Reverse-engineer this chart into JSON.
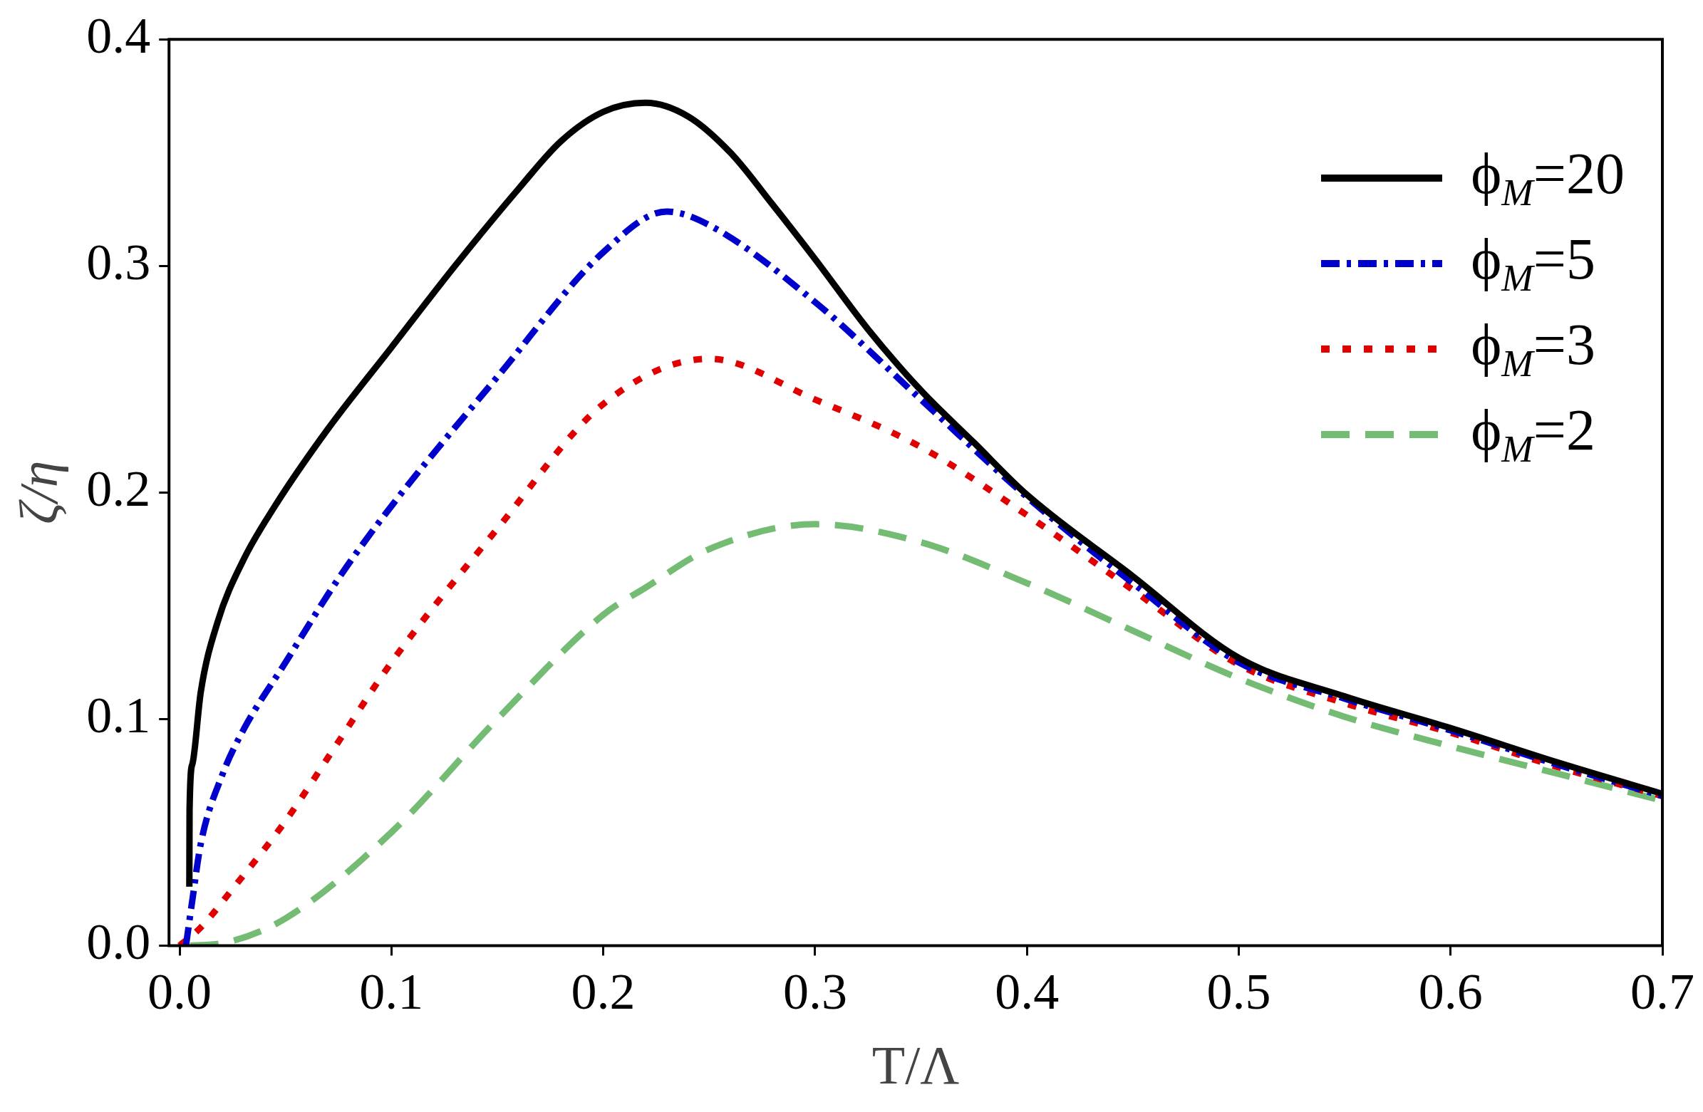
{
  "chart_data": {
    "type": "line",
    "xlabel": "T/Λ",
    "ylabel": "ζ/η",
    "xlim": [
      -0.005,
      0.7
    ],
    "ylim": [
      0,
      0.4
    ],
    "xticks": [
      {
        "value": 0,
        "label": "0.0"
      },
      0.1,
      0.2,
      0.3,
      0.4,
      0.5,
      0.6,
      0.7
    ],
    "yticks": [
      {
        "value": 0,
        "label": "0.0"
      },
      0.1,
      0.2,
      0.3,
      0.4
    ],
    "grid": false,
    "legend": "top right",
    "marker": "none",
    "series": [
      {
        "name": "ϕ$_{M}$=20",
        "color": "#000000",
        "line_style": "solid",
        "x": [
          0.0046,
          0.0047,
          0.006,
          0.01,
          0.018,
          0.03,
          0.045,
          0.07,
          0.1,
          0.13,
          0.16,
          0.18,
          0.2,
          0.22,
          0.24,
          0.26,
          0.28,
          0.3,
          0.325,
          0.35,
          0.375,
          0.4,
          0.45,
          0.5,
          0.55,
          0.6,
          0.65,
          0.7
        ],
        "values": [
          0.026,
          0.06,
          0.08,
          0.112,
          0.143,
          0.17,
          0.194,
          0.228,
          0.264,
          0.3,
          0.334,
          0.355,
          0.368,
          0.372,
          0.366,
          0.35,
          0.327,
          0.303,
          0.272,
          0.245,
          0.222,
          0.199,
          0.163,
          0.127,
          0.11,
          0.096,
          0.081,
          0.067
        ]
      },
      {
        "name": "ϕ$_{M}$=5",
        "color": "#0000cc",
        "line_style": "dashdot",
        "x": [
          0.003,
          0.006,
          0.01,
          0.02,
          0.03,
          0.05,
          0.075,
          0.1,
          0.15,
          0.2,
          0.23,
          0.25,
          0.3,
          0.35,
          0.4,
          0.45,
          0.5,
          0.55,
          0.6,
          0.65,
          0.7
        ],
        "values": [
          0,
          0.02,
          0.045,
          0.075,
          0.095,
          0.125,
          0.162,
          0.194,
          0.251,
          0.306,
          0.324,
          0.318,
          0.284,
          0.241,
          0.198,
          0.16,
          0.125,
          0.109,
          0.095,
          0.08,
          0.066
        ]
      },
      {
        "name": "ϕ$_{M}$=3",
        "color": "#e00000",
        "line_style": "dotted",
        "x": [
          0,
          0.01,
          0.025,
          0.05,
          0.075,
          0.1,
          0.15,
          0.2,
          0.25,
          0.3,
          0.35,
          0.4,
          0.45,
          0.5,
          0.55,
          0.6,
          0.65,
          0.7
        ],
        "values": [
          0,
          0.008,
          0.025,
          0.055,
          0.09,
          0.125,
          0.184,
          0.239,
          0.259,
          0.241,
          0.22,
          0.19,
          0.157,
          0.124,
          0.107,
          0.094,
          0.079,
          0.066
        ]
      },
      {
        "name": "ϕ$_{M}$=2",
        "color": "#74bb74",
        "line_style": "dashed",
        "x": [
          0.005,
          0.02,
          0.05,
          0.1,
          0.15,
          0.2,
          0.22,
          0.25,
          0.3,
          0.35,
          0.4,
          0.45,
          0.5,
          0.55,
          0.6,
          0.65,
          0.7
        ],
        "values": [
          0,
          0.001,
          0.012,
          0.05,
          0.1,
          0.146,
          0.158,
          0.175,
          0.186,
          0.178,
          0.16,
          0.139,
          0.118,
          0.101,
          0.088,
          0.076,
          0.064
        ]
      }
    ]
  }
}
